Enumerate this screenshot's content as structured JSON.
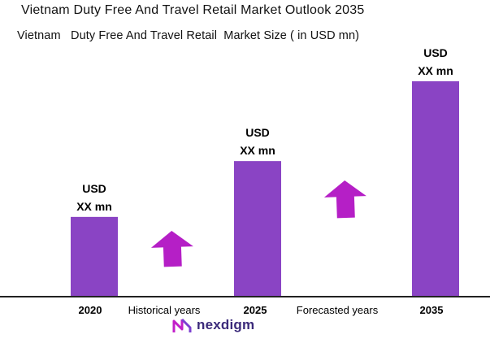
{
  "title": "Vietnam Duty Free And Travel Retail Market Outlook 2035",
  "subtitle": "Vietnam   Duty Free And Travel Retail  Market Size ( in USD mn)",
  "colors": {
    "bar": "#8a44c4",
    "arrow": "#b51fc6",
    "axis": "#222222",
    "logo": "#3b2a7a"
  },
  "chart_data": {
    "type": "bar",
    "categories": [
      "2020",
      "2025",
      "2035"
    ],
    "values": [
      1.0,
      1.7,
      2.7
    ],
    "value_labels": [
      {
        "line1": "USD",
        "line2": "XX mn"
      },
      {
        "line1": "USD",
        "line2": "XX mn"
      },
      {
        "line1": "USD",
        "line2": "XX mn"
      }
    ],
    "title": "Vietnam   Duty Free And Travel Retail  Market Size ( in USD mn)",
    "annotations": [
      "Historical years",
      "Forecasted years"
    ],
    "ylim": [
      0,
      2.7
    ],
    "grid": false,
    "legend": "none"
  },
  "logo": {
    "text": "nexdigm",
    "icon": "nexdigm-logo-icon"
  }
}
